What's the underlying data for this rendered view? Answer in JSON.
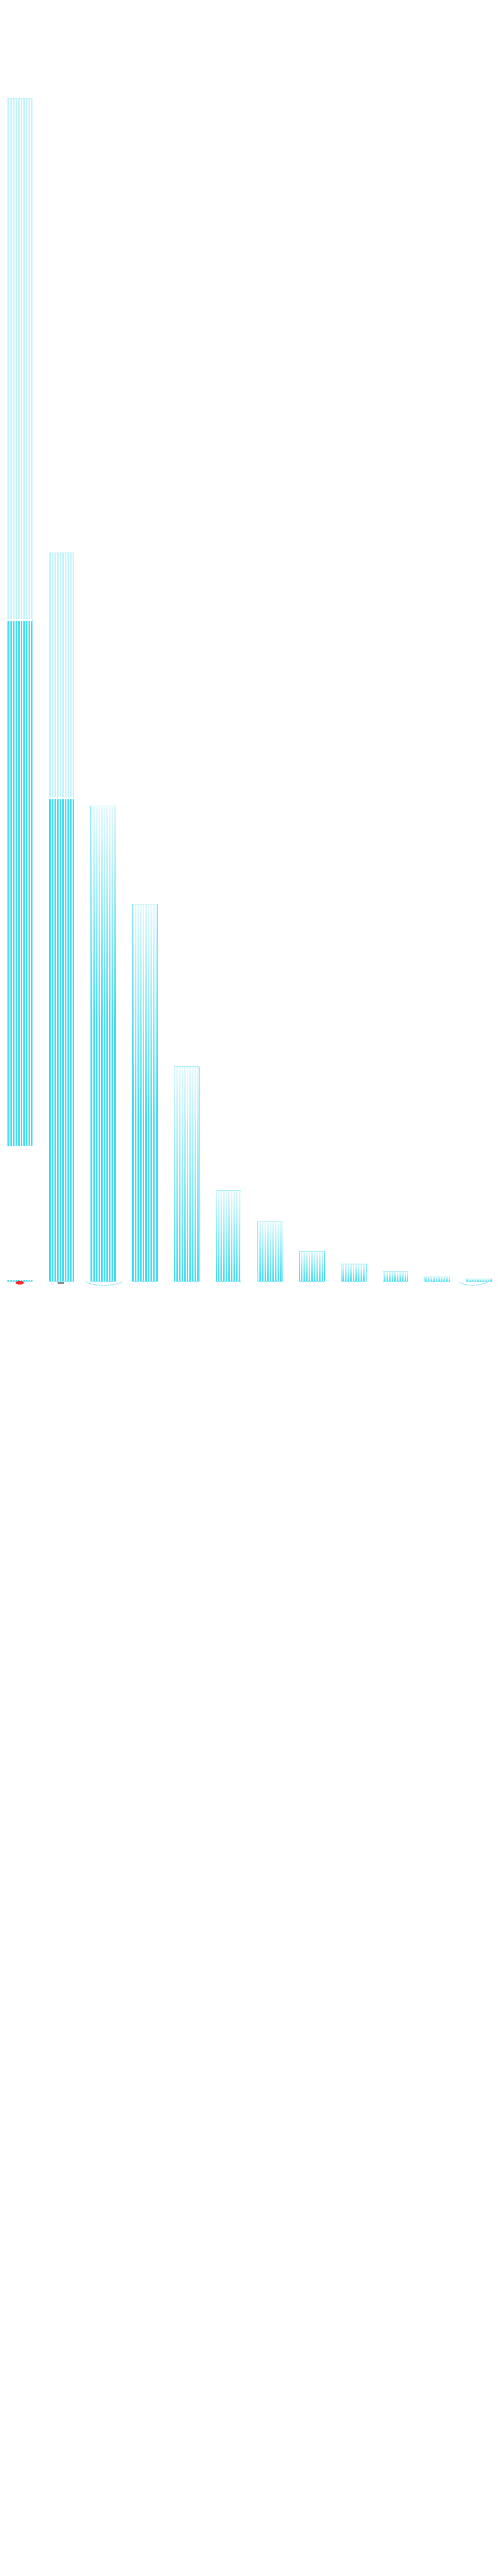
{
  "chart_data": {
    "type": "bar",
    "title": "",
    "xlabel": "",
    "ylabel": "",
    "ylim": [
      0,
      2400
    ],
    "grid": false,
    "legend": "none",
    "bar_color": "#22d3ee",
    "bar_color_light": "#bdf3fb",
    "marker_color": "#ff2a2a",
    "values": [
      2290,
      1410,
      920,
      730,
      415,
      175,
      115,
      58,
      33,
      18,
      8,
      4
    ],
    "overlays": [
      1280,
      935
    ]
  }
}
